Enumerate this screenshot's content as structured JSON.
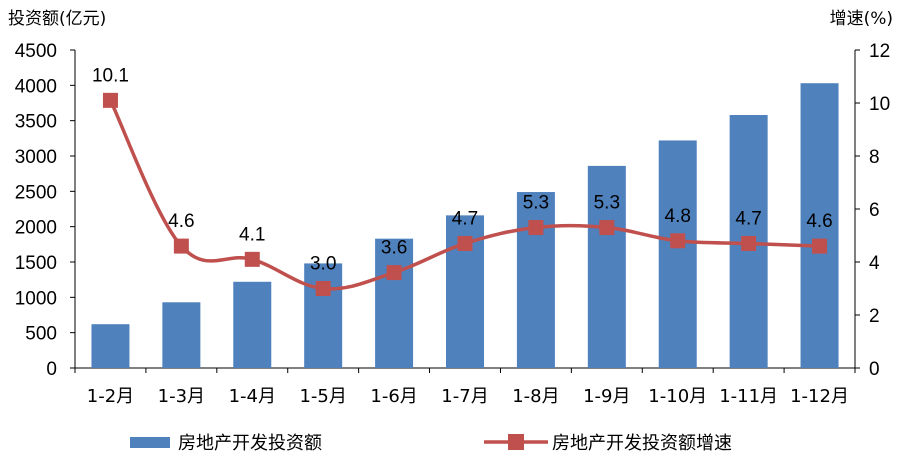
{
  "chart_data": {
    "type": "bar+line",
    "categories": [
      "1-2月",
      "1-3月",
      "1-4月",
      "1-5月",
      "1-6月",
      "1-7月",
      "1-8月",
      "1-9月",
      "1-10月",
      "1-11月",
      "1-12月"
    ],
    "series": [
      {
        "name": "房地产开发投资额",
        "type": "bar",
        "axis": "left",
        "color": "#4F81BD",
        "values": [
          620,
          930,
          1220,
          1480,
          1830,
          2160,
          2490,
          2860,
          3220,
          3580,
          4030
        ]
      },
      {
        "name": "房地产开发投资额增速",
        "type": "line",
        "axis": "right",
        "color": "#C0504D",
        "values": [
          10.1,
          4.6,
          4.1,
          3.0,
          3.6,
          4.7,
          5.3,
          5.3,
          4.8,
          4.7,
          4.6
        ],
        "labels": [
          "10.1",
          "4.6",
          "4.1",
          "3.0",
          "3.6",
          "4.7",
          "5.3",
          "5.3",
          "4.8",
          "4.7",
          "4.6"
        ]
      }
    ],
    "ylabel_left": "投资额(亿元)",
    "ylabel_right": "增速(%)",
    "ylim_left": [
      0,
      4500
    ],
    "yticks_left": [
      "0",
      "500",
      "1000",
      "1500",
      "2000",
      "2500",
      "3000",
      "3500",
      "4000",
      "4500"
    ],
    "ylim_right": [
      0,
      12
    ],
    "yticks_right": [
      "0",
      "2",
      "4",
      "6",
      "8",
      "10",
      "12"
    ],
    "grid": false,
    "legend_position": "bottom"
  }
}
